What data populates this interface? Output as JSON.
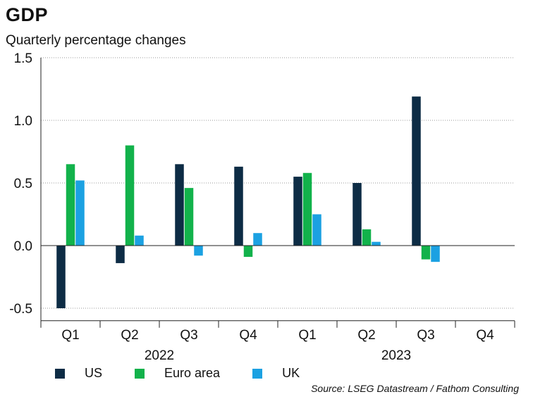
{
  "title": "GDP",
  "subtitle": "Quarterly percentage changes",
  "source": "Source: LSEG Datastream / Fathom Consulting",
  "chart_data": {
    "type": "bar",
    "title": "GDP",
    "subtitle": "Quarterly percentage changes",
    "categories": [
      "Q1",
      "Q2",
      "Q3",
      "Q4",
      "Q1",
      "Q2",
      "Q3",
      "Q4"
    ],
    "years": [
      {
        "label": "2022",
        "quarters": [
          0,
          1,
          2,
          3
        ]
      },
      {
        "label": "2023",
        "quarters": [
          4,
          5,
          6,
          7
        ]
      }
    ],
    "series": [
      {
        "name": "US",
        "color": "#0d2c45",
        "values": [
          -0.5,
          -0.14,
          0.65,
          0.63,
          0.55,
          0.5,
          1.19,
          null
        ]
      },
      {
        "name": "Euro area",
        "color": "#12b24b",
        "values": [
          0.65,
          0.8,
          0.46,
          -0.09,
          0.58,
          0.13,
          -0.11,
          null
        ]
      },
      {
        "name": "UK",
        "color": "#1ba1e2",
        "values": [
          0.52,
          0.08,
          -0.08,
          0.1,
          0.25,
          0.03,
          -0.13,
          null
        ]
      }
    ],
    "ylim": [
      -0.6,
      1.5
    ],
    "yticks": [
      {
        "value": -0.5,
        "label": "-0.5"
      },
      {
        "value": 0.0,
        "label": "0.0"
      },
      {
        "value": 0.5,
        "label": "0.5"
      },
      {
        "value": 1.0,
        "label": "1.0"
      },
      {
        "value": 1.5,
        "label": "1.5"
      }
    ],
    "grid": true,
    "legend_position": "bottom-left",
    "xlabel": "",
    "ylabel": ""
  }
}
